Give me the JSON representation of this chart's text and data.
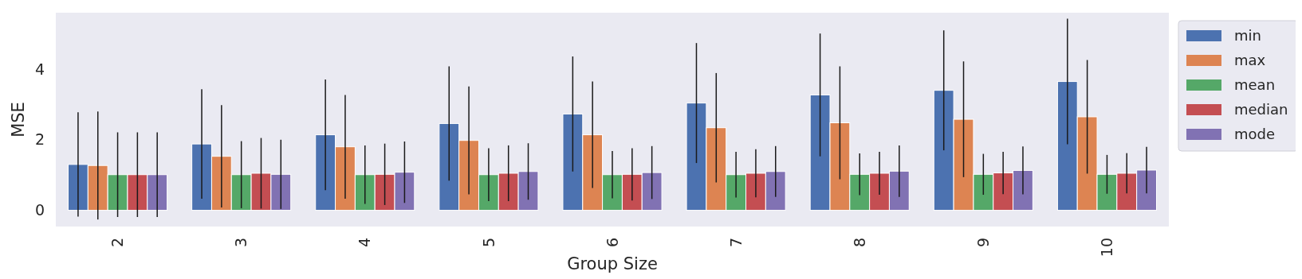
{
  "chart_data": {
    "type": "bar",
    "xlabel": "Group Size",
    "ylabel": "MSE",
    "categories": [
      "2",
      "3",
      "4",
      "5",
      "6",
      "7",
      "8",
      "9",
      "10"
    ],
    "ylim": [
      -0.46,
      5.6
    ],
    "yticks": [
      0,
      2,
      4
    ],
    "grid": false,
    "legend": "top right",
    "series": [
      {
        "name": "min",
        "color": "#4c72b0",
        "values": [
          1.3,
          1.88,
          2.14,
          2.46,
          2.73,
          3.04,
          3.27,
          3.4,
          3.65
        ],
        "errors": [
          1.48,
          1.55,
          1.57,
          1.62,
          1.63,
          1.7,
          1.74,
          1.7,
          1.78
        ]
      },
      {
        "name": "max",
        "color": "#dd8452",
        "values": [
          1.27,
          1.53,
          1.8,
          1.98,
          2.14,
          2.34,
          2.48,
          2.58,
          2.65
        ],
        "errors": [
          1.53,
          1.45,
          1.47,
          1.53,
          1.51,
          1.55,
          1.6,
          1.64,
          1.61
        ]
      },
      {
        "name": "mean",
        "color": "#55a868",
        "values": [
          1.01,
          1.01,
          1.01,
          1.01,
          1.01,
          1.01,
          1.02,
          1.02,
          1.02
        ],
        "errors": [
          1.2,
          0.95,
          0.83,
          0.75,
          0.67,
          0.65,
          0.59,
          0.58,
          0.55
        ]
      },
      {
        "name": "median",
        "color": "#c44e52",
        "values": [
          1.01,
          1.05,
          1.02,
          1.05,
          1.02,
          1.05,
          1.05,
          1.06,
          1.05
        ],
        "errors": [
          1.2,
          1.0,
          0.87,
          0.79,
          0.74,
          0.68,
          0.61,
          0.6,
          0.57
        ]
      },
      {
        "name": "mode",
        "color": "#8172b3",
        "values": [
          1.01,
          1.02,
          1.08,
          1.1,
          1.07,
          1.1,
          1.11,
          1.13,
          1.14
        ],
        "errors": [
          1.2,
          0.98,
          0.87,
          0.8,
          0.75,
          0.72,
          0.73,
          0.68,
          0.66
        ]
      }
    ]
  }
}
